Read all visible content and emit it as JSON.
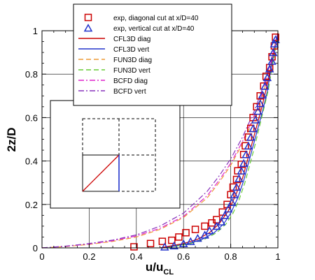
{
  "chart_data": {
    "type": "line",
    "xlabel": "u/u",
    "xlabel_sub": "CL",
    "ylabel": "2z/D",
    "xlim": [
      0,
      1
    ],
    "ylim": [
      0,
      1
    ],
    "xticks": [
      "0",
      "0.2",
      "0.4",
      "0.6",
      "0.8",
      "1"
    ],
    "yticks": [
      "0",
      "0.2",
      "0.4",
      "0.6",
      "0.8",
      "1"
    ],
    "grid": true,
    "legend_position": "top",
    "series": [
      {
        "name": "exp, diagonal cut at x/D=40",
        "kind": "marker-square",
        "color": "#cc0000",
        "points": [
          [
            0.39,
            0.005
          ],
          [
            0.46,
            0.02
          ],
          [
            0.51,
            0.03
          ],
          [
            0.55,
            0.035
          ],
          [
            0.58,
            0.05
          ],
          [
            0.61,
            0.07
          ],
          [
            0.65,
            0.085
          ],
          [
            0.69,
            0.1
          ],
          [
            0.72,
            0.115
          ],
          [
            0.74,
            0.13
          ],
          [
            0.765,
            0.165
          ],
          [
            0.785,
            0.2
          ],
          [
            0.8,
            0.245
          ],
          [
            0.81,
            0.28
          ],
          [
            0.825,
            0.315
          ],
          [
            0.83,
            0.355
          ],
          [
            0.845,
            0.385
          ],
          [
            0.855,
            0.43
          ],
          [
            0.862,
            0.47
          ],
          [
            0.875,
            0.51
          ],
          [
            0.885,
            0.55
          ],
          [
            0.895,
            0.6
          ],
          [
            0.91,
            0.65
          ],
          [
            0.925,
            0.7
          ],
          [
            0.94,
            0.745
          ],
          [
            0.95,
            0.79
          ],
          [
            0.965,
            0.83
          ],
          [
            0.975,
            0.88
          ],
          [
            0.985,
            0.93
          ],
          [
            0.99,
            0.97
          ]
        ]
      },
      {
        "name": "exp, vertical cut at x/D=40",
        "kind": "marker-triangle",
        "color": "#2233cc",
        "points": [
          [
            0.52,
            0.005
          ],
          [
            0.56,
            0.01
          ],
          [
            0.6,
            0.02
          ],
          [
            0.63,
            0.03
          ],
          [
            0.66,
            0.045
          ],
          [
            0.69,
            0.06
          ],
          [
            0.71,
            0.08
          ],
          [
            0.74,
            0.1
          ],
          [
            0.76,
            0.12
          ],
          [
            0.775,
            0.15
          ],
          [
            0.79,
            0.18
          ],
          [
            0.805,
            0.21
          ],
          [
            0.815,
            0.245
          ],
          [
            0.825,
            0.28
          ],
          [
            0.835,
            0.32
          ],
          [
            0.845,
            0.355
          ],
          [
            0.855,
            0.39
          ],
          [
            0.865,
            0.43
          ],
          [
            0.875,
            0.47
          ],
          [
            0.885,
            0.51
          ],
          [
            0.895,
            0.55
          ],
          [
            0.905,
            0.59
          ],
          [
            0.915,
            0.63
          ],
          [
            0.925,
            0.665
          ],
          [
            0.935,
            0.705
          ],
          [
            0.945,
            0.745
          ],
          [
            0.955,
            0.785
          ],
          [
            0.965,
            0.825
          ],
          [
            0.975,
            0.86
          ],
          [
            0.98,
            0.9
          ],
          [
            0.985,
            0.94
          ],
          [
            0.99,
            0.96
          ]
        ]
      },
      {
        "name": "CFL3D diag",
        "kind": "line-solid",
        "color": "#cc0000",
        "points": [
          [
            0.5,
            0
          ],
          [
            0.6,
            0.02
          ],
          [
            0.66,
            0.04
          ],
          [
            0.71,
            0.07
          ],
          [
            0.75,
            0.11
          ],
          [
            0.79,
            0.17
          ],
          [
            0.82,
            0.24
          ],
          [
            0.85,
            0.32
          ],
          [
            0.87,
            0.4
          ],
          [
            0.89,
            0.48
          ],
          [
            0.91,
            0.56
          ],
          [
            0.93,
            0.64
          ],
          [
            0.95,
            0.73
          ],
          [
            0.97,
            0.83
          ],
          [
            0.985,
            0.92
          ],
          [
            1.0,
            0.99
          ]
        ]
      },
      {
        "name": "CFL3D vert",
        "kind": "line-solid",
        "color": "#2233cc",
        "points": [
          [
            0.52,
            0
          ],
          [
            0.62,
            0.02
          ],
          [
            0.68,
            0.04
          ],
          [
            0.73,
            0.07
          ],
          [
            0.77,
            0.11
          ],
          [
            0.8,
            0.16
          ],
          [
            0.83,
            0.23
          ],
          [
            0.855,
            0.31
          ],
          [
            0.875,
            0.39
          ],
          [
            0.895,
            0.47
          ],
          [
            0.915,
            0.55
          ],
          [
            0.935,
            0.63
          ],
          [
            0.955,
            0.72
          ],
          [
            0.97,
            0.82
          ],
          [
            0.985,
            0.91
          ],
          [
            1.0,
            0.98
          ]
        ]
      },
      {
        "name": "FUN3D diag",
        "kind": "line-dashed",
        "color": "#ee9933",
        "points": [
          [
            0.0,
            0
          ],
          [
            0.1,
            0.006
          ],
          [
            0.2,
            0.016
          ],
          [
            0.3,
            0.03
          ],
          [
            0.4,
            0.05
          ],
          [
            0.5,
            0.085
          ],
          [
            0.6,
            0.14
          ],
          [
            0.7,
            0.23
          ],
          [
            0.75,
            0.3
          ],
          [
            0.8,
            0.38
          ],
          [
            0.85,
            0.48
          ],
          [
            0.9,
            0.6
          ],
          [
            0.94,
            0.72
          ],
          [
            0.97,
            0.84
          ],
          [
            0.99,
            0.94
          ],
          [
            1.0,
            0.99
          ]
        ]
      },
      {
        "name": "FUN3D vert",
        "kind": "line-dashed",
        "color": "#66cc33",
        "points": [
          [
            0.53,
            0
          ],
          [
            0.63,
            0.02
          ],
          [
            0.69,
            0.04
          ],
          [
            0.74,
            0.07
          ],
          [
            0.78,
            0.11
          ],
          [
            0.81,
            0.16
          ],
          [
            0.835,
            0.22
          ],
          [
            0.86,
            0.3
          ],
          [
            0.88,
            0.38
          ],
          [
            0.9,
            0.46
          ],
          [
            0.92,
            0.55
          ],
          [
            0.94,
            0.64
          ],
          [
            0.96,
            0.73
          ],
          [
            0.975,
            0.83
          ],
          [
            0.99,
            0.92
          ],
          [
            1.0,
            0.98
          ]
        ]
      },
      {
        "name": "BCFD diag",
        "kind": "line-dashdot",
        "color": "#dd22cc",
        "points": [
          [
            0.0,
            0
          ],
          [
            0.1,
            0.007
          ],
          [
            0.2,
            0.018
          ],
          [
            0.3,
            0.033
          ],
          [
            0.4,
            0.055
          ],
          [
            0.5,
            0.09
          ],
          [
            0.6,
            0.145
          ],
          [
            0.7,
            0.24
          ],
          [
            0.75,
            0.31
          ],
          [
            0.8,
            0.39
          ],
          [
            0.85,
            0.49
          ],
          [
            0.9,
            0.61
          ],
          [
            0.94,
            0.73
          ],
          [
            0.97,
            0.85
          ],
          [
            0.99,
            0.95
          ],
          [
            1.0,
            0.99
          ]
        ]
      },
      {
        "name": "BCFD vert",
        "kind": "line-dashdot",
        "color": "#8833bb",
        "points": [
          [
            0.0,
            0
          ],
          [
            0.1,
            0.008
          ],
          [
            0.2,
            0.02
          ],
          [
            0.3,
            0.036
          ],
          [
            0.4,
            0.06
          ],
          [
            0.5,
            0.1
          ],
          [
            0.6,
            0.16
          ],
          [
            0.7,
            0.26
          ],
          [
            0.75,
            0.33
          ],
          [
            0.8,
            0.41
          ],
          [
            0.85,
            0.51
          ],
          [
            0.9,
            0.63
          ],
          [
            0.94,
            0.75
          ],
          [
            0.97,
            0.86
          ],
          [
            0.99,
            0.95
          ],
          [
            1.0,
            0.99
          ]
        ]
      }
    ]
  },
  "inset": {
    "diag_color": "#cc0000",
    "vert_color": "#2233cc"
  }
}
